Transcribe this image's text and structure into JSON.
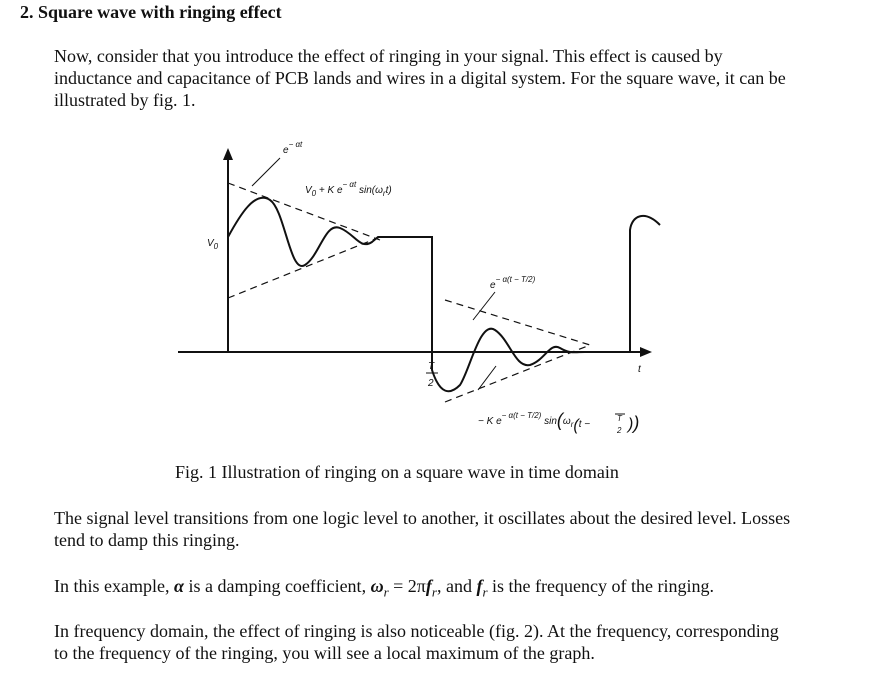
{
  "heading": "2. Square wave with ringing effect",
  "intro": [
    "Now, consider that you introduce the effect of ringing in your signal. This effect is caused by",
    "inductance and capacitance of PCB lands and wires in a digital system. For the square wave, it can be",
    "illustrated by fig. 1."
  ],
  "figure": {
    "labels": {
      "decay_top": [
        "e",
        "− αt"
      ],
      "upper_curve": [
        "V",
        "0",
        " + K e",
        "− αt",
        " sin(ω",
        "r",
        "t)"
      ],
      "v0": [
        "V",
        "0"
      ],
      "decay_bottom": [
        "e",
        "− α(t − T/2)"
      ],
      "half_period": [
        "T",
        "2"
      ],
      "time": "t",
      "lower_curve": [
        "− K e",
        "− α(t − T/2)",
        " sin",
        "(",
        "ω",
        "r",
        "(",
        "t − ",
        "T",
        "2",
        ")",
        ")"
      ]
    },
    "caption": "Fig. 1 Illustration of ringing on a square wave in time domain"
  },
  "paragraph_1": [
    "The signal level transitions from one logic level to another, it oscillates about the desired level. Losses",
    "tend to damp this ringing."
  ],
  "paragraph_2": [
    "In this example, ",
    "α",
    " is a damping coefficient, ",
    "ω",
    "r",
    " = 2π",
    "f",
    "r",
    ", and ",
    "f",
    "r",
    " is the frequency of the ringing."
  ],
  "paragraph_3": [
    "In frequency domain, the effect of ringing is also noticeable (fig. 2). At the frequency, corresponding",
    "to the frequency of the ringing, you will see a local maximum of the graph."
  ]
}
